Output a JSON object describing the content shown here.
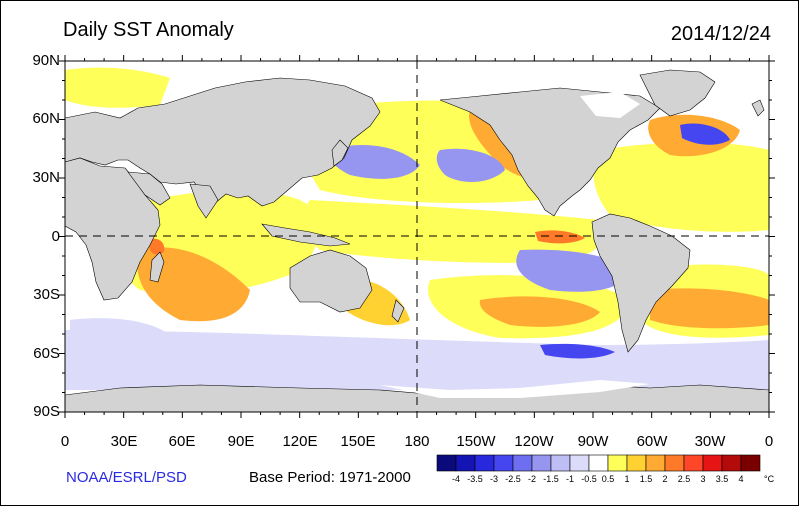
{
  "header": {
    "title": "Daily SST Anomaly",
    "date": "2014/12/24"
  },
  "axes": {
    "lat_labels": [
      "90N",
      "60N",
      "30N",
      "0",
      "30S",
      "60S",
      "90S"
    ],
    "lon_labels": [
      "0",
      "30E",
      "60E",
      "90E",
      "120E",
      "150E",
      "180",
      "150W",
      "120W",
      "90W",
      "60W",
      "30W",
      "0"
    ]
  },
  "footer": {
    "credit": "NOAA/ESRL/PSD",
    "base_period": "Base Period: 1971-2000"
  },
  "colorbar": {
    "unit": "°C",
    "tick_labels": [
      "-4",
      "-3.5",
      "-3",
      "-2.5",
      "-2",
      "-1.5",
      "-1",
      "-0.5",
      "0.5",
      "1",
      "1.5",
      "2",
      "2.5",
      "3",
      "3.5",
      "4"
    ],
    "colors": [
      "#0a0a7a",
      "#1414b4",
      "#2828dc",
      "#4646f0",
      "#6e6ef0",
      "#9696f0",
      "#bebef5",
      "#dcdcfa",
      "#ffffff",
      "#ffff5a",
      "#ffd232",
      "#ffaa32",
      "#ff7a28",
      "#ff4628",
      "#e61414",
      "#b40a0a",
      "#7a0000"
    ]
  },
  "map_colors": {
    "land": "#d3d3d3",
    "ocean": "#ffffff",
    "warm_light": "#ffff5a",
    "warm_mid": "#ffd232",
    "warm_strong": "#ffaa32",
    "warm_hot": "#ff7a28",
    "cool_light": "#dcdcfa",
    "cool_mid": "#9696f0",
    "cool_strong": "#4646f0"
  }
}
